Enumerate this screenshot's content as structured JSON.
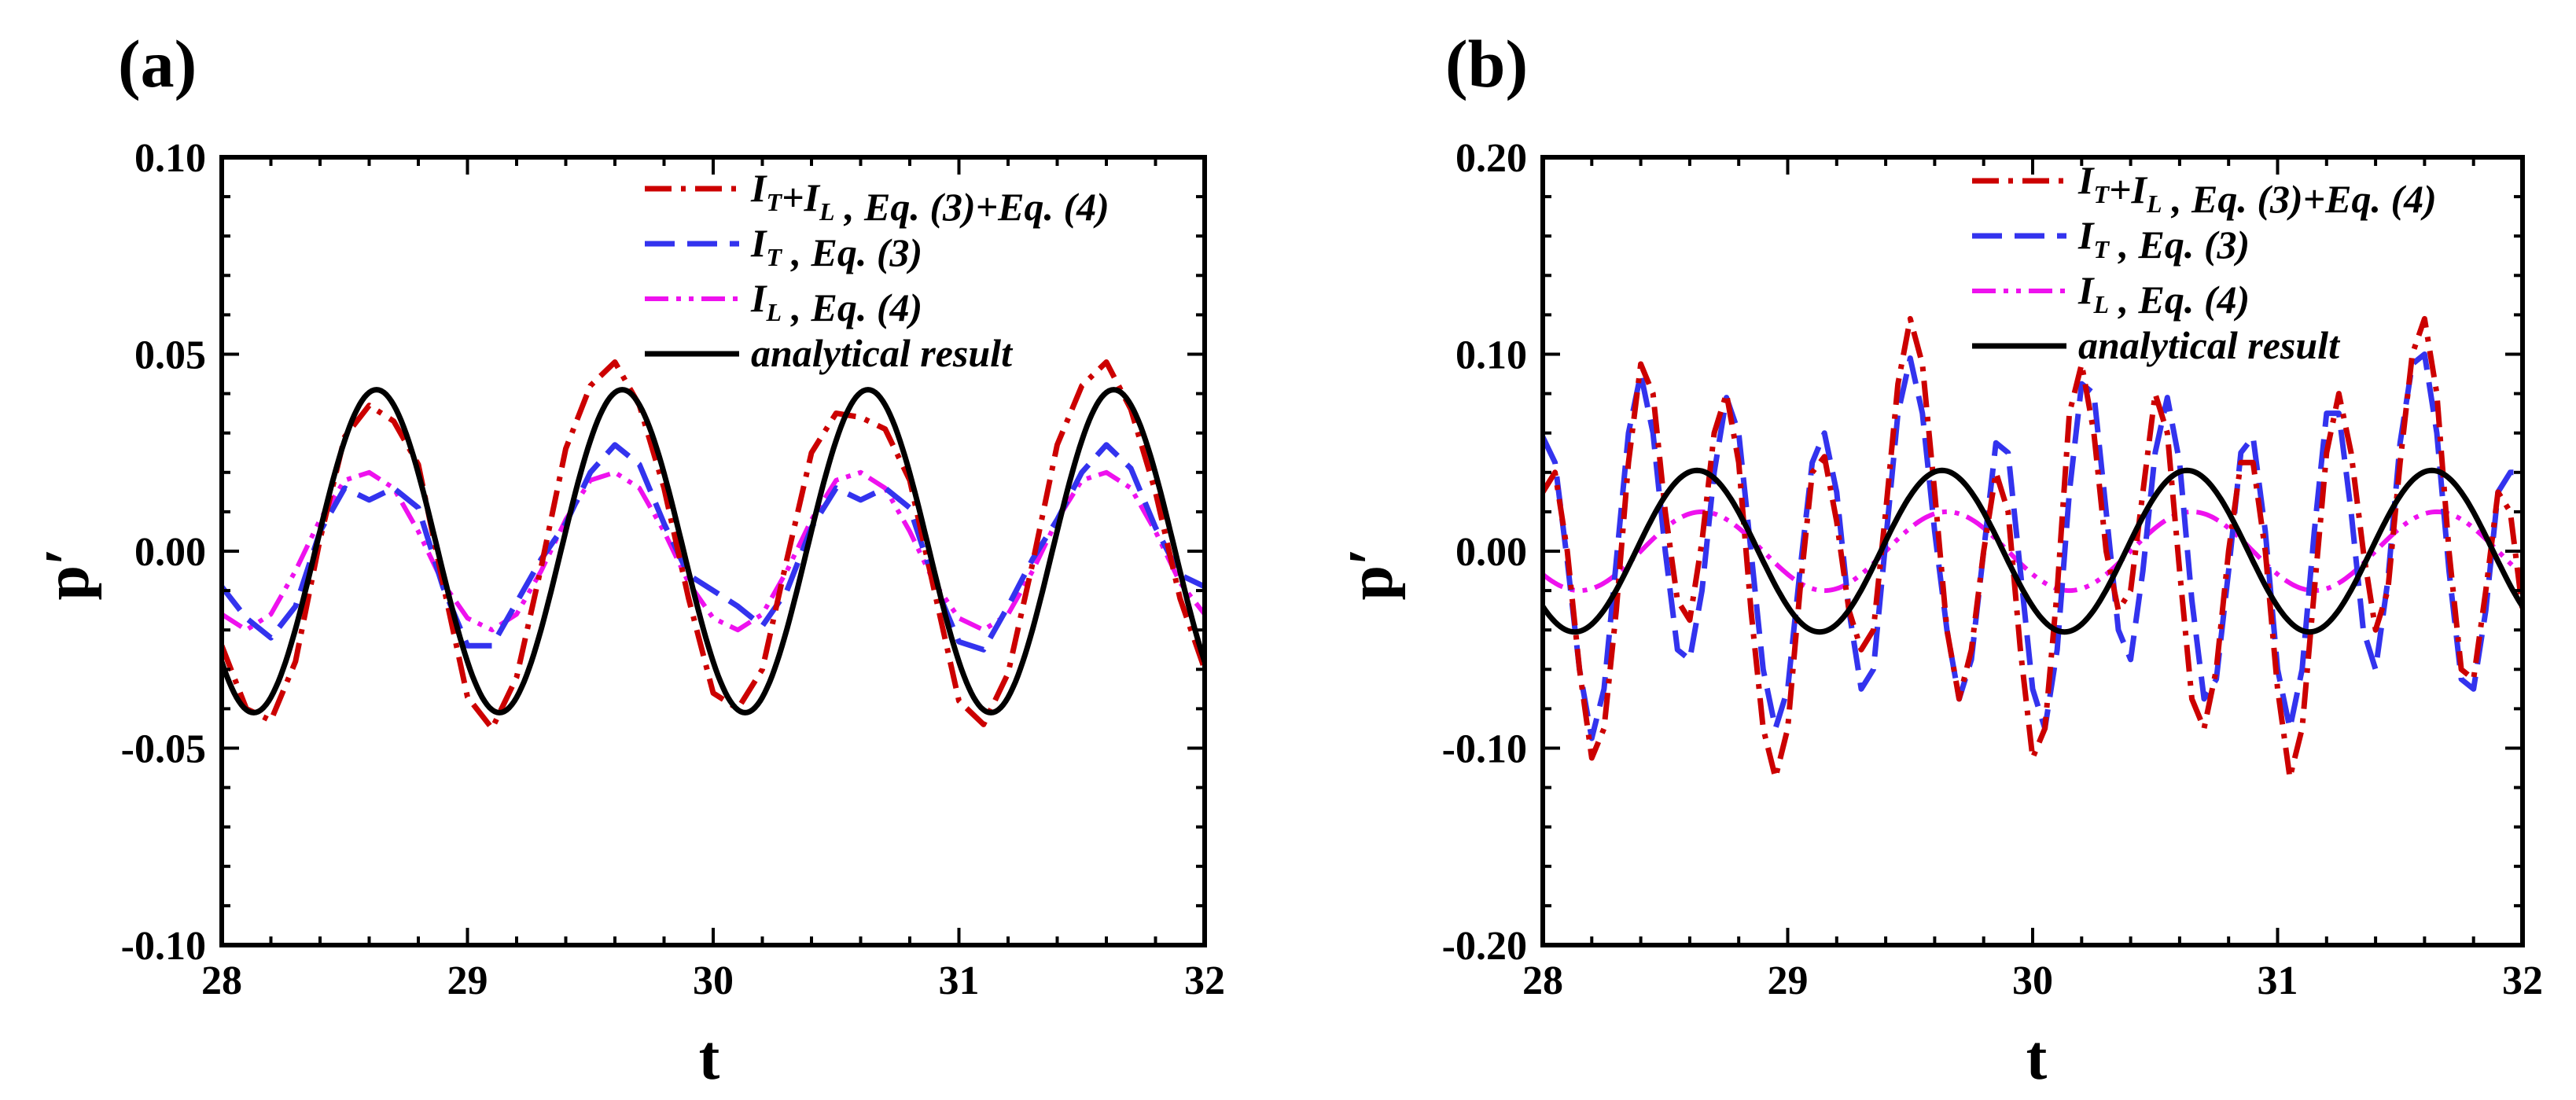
{
  "chart_data": [
    {
      "type": "line",
      "panel_label": "(a)",
      "xlabel": "t",
      "ylabel": "p′",
      "xlim": [
        28,
        32
      ],
      "ylim": [
        -0.1,
        0.1
      ],
      "xticks": [
        28,
        29,
        30,
        31,
        32
      ],
      "xtick_labels": [
        "28",
        "29",
        "30",
        "31",
        "32"
      ],
      "yticks": [
        -0.1,
        -0.05,
        0.0,
        0.05,
        0.1
      ],
      "ytick_labels": [
        "-0.10",
        "-0.05",
        "0.00",
        "0.05",
        "0.10"
      ],
      "legend": "top-right",
      "series": [
        {
          "key": "it_il",
          "name": "I_T+I_L , Eq. (3)+Eq. (4)",
          "color": "#cc0000",
          "dash": "dashdot",
          "x": [
            28.0,
            28.1,
            28.2,
            28.3,
            28.4,
            28.5,
            28.6,
            28.7,
            28.8,
            28.9,
            29.0,
            29.1,
            29.2,
            29.3,
            29.4,
            29.5,
            29.6,
            29.7,
            29.8,
            29.9,
            30.0,
            30.1,
            30.2,
            30.3,
            30.4,
            30.5,
            30.6,
            30.7,
            30.8,
            30.9,
            31.0,
            31.1,
            31.2,
            31.3,
            31.4,
            31.5,
            31.6,
            31.7,
            31.8,
            31.9,
            32.0
          ],
          "y": [
            -0.024,
            -0.04,
            -0.043,
            -0.028,
            0.003,
            0.029,
            0.037,
            0.033,
            0.022,
            -0.008,
            -0.037,
            -0.045,
            -0.032,
            -0.004,
            0.026,
            0.042,
            0.048,
            0.037,
            0.016,
            -0.012,
            -0.036,
            -0.04,
            -0.03,
            -0.002,
            0.025,
            0.035,
            0.034,
            0.031,
            0.018,
            -0.01,
            -0.038,
            -0.044,
            -0.031,
            -0.003,
            0.027,
            0.042,
            0.048,
            0.036,
            0.015,
            -0.012,
            -0.03
          ]
        },
        {
          "key": "it",
          "name": "I_T , Eq. (3)",
          "color": "#3333ee",
          "dash": "dash",
          "x": [
            28.0,
            28.1,
            28.2,
            28.3,
            28.4,
            28.5,
            28.6,
            28.7,
            28.8,
            28.9,
            29.0,
            29.1,
            29.2,
            29.3,
            29.4,
            29.5,
            29.6,
            29.7,
            29.8,
            29.9,
            30.0,
            30.1,
            30.2,
            30.3,
            30.4,
            30.5,
            30.6,
            30.7,
            30.8,
            30.9,
            31.0,
            31.1,
            31.2,
            31.3,
            31.4,
            31.5,
            31.6,
            31.7,
            31.8,
            31.9,
            32.0
          ],
          "y": [
            -0.009,
            -0.017,
            -0.022,
            -0.014,
            0.005,
            0.016,
            0.013,
            0.016,
            0.011,
            -0.009,
            -0.024,
            -0.024,
            -0.013,
            -0.002,
            0.007,
            0.02,
            0.027,
            0.022,
            0.007,
            -0.006,
            -0.01,
            -0.014,
            -0.019,
            -0.01,
            0.006,
            0.016,
            0.013,
            0.016,
            0.011,
            -0.008,
            -0.023,
            -0.025,
            -0.014,
            -0.002,
            0.008,
            0.02,
            0.027,
            0.021,
            0.006,
            -0.006,
            -0.009
          ]
        },
        {
          "key": "il",
          "name": "I_L , Eq. (4)",
          "color": "#ee11ee",
          "dash": "dashdotdot",
          "x": [
            28.0,
            28.1,
            28.2,
            28.3,
            28.4,
            28.5,
            28.6,
            28.7,
            28.8,
            28.9,
            29.0,
            29.1,
            29.2,
            29.3,
            29.4,
            29.5,
            29.6,
            29.7,
            29.8,
            29.9,
            30.0,
            30.1,
            30.2,
            30.3,
            30.4,
            30.5,
            30.6,
            30.7,
            30.8,
            30.9,
            31.0,
            31.1,
            31.2,
            31.3,
            31.4,
            31.5,
            31.6,
            31.7,
            31.8,
            31.9,
            32.0
          ],
          "y": [
            -0.016,
            -0.02,
            -0.016,
            -0.005,
            0.008,
            0.018,
            0.02,
            0.016,
            0.005,
            -0.008,
            -0.017,
            -0.02,
            -0.016,
            -0.005,
            0.008,
            0.018,
            0.02,
            0.016,
            0.005,
            -0.008,
            -0.017,
            -0.02,
            -0.016,
            -0.005,
            0.008,
            0.018,
            0.02,
            0.016,
            0.005,
            -0.008,
            -0.017,
            -0.02,
            -0.016,
            -0.005,
            0.008,
            0.018,
            0.02,
            0.016,
            0.005,
            -0.008,
            -0.016
          ]
        },
        {
          "key": "an",
          "name": "analytical result",
          "color": "#000000",
          "dash": "solid",
          "func": {
            "amp": 0.041,
            "period": 1.0,
            "peak_t": 28.63
          }
        }
      ]
    },
    {
      "type": "line",
      "panel_label": "(b)",
      "xlabel": "t",
      "ylabel": "p′",
      "xlim": [
        28,
        32
      ],
      "ylim": [
        -0.2,
        0.2
      ],
      "xticks": [
        28,
        29,
        30,
        31,
        32
      ],
      "xtick_labels": [
        "28",
        "29",
        "30",
        "31",
        "32"
      ],
      "yticks": [
        -0.2,
        -0.1,
        0.0,
        0.1,
        0.2
      ],
      "ytick_labels": [
        "-0.20",
        "-0.10",
        "0.00",
        "0.10",
        "0.20"
      ],
      "legend": "top-right",
      "series": [
        {
          "key": "it_il",
          "name": "I_T+I_L , Eq. (3)+Eq. (4)",
          "color": "#cc0000",
          "dash": "dashdot",
          "x": [
            28.0,
            28.05,
            28.1,
            28.15,
            28.2,
            28.25,
            28.3,
            28.35,
            28.4,
            28.45,
            28.5,
            28.55,
            28.6,
            28.65,
            28.7,
            28.75,
            28.8,
            28.85,
            28.9,
            28.95,
            29.0,
            29.05,
            29.1,
            29.15,
            29.2,
            29.25,
            29.3,
            29.35,
            29.4,
            29.45,
            29.5,
            29.55,
            29.6,
            29.65,
            29.7,
            29.75,
            29.8,
            29.85,
            29.9,
            29.95,
            30.0,
            30.05,
            30.1,
            30.15,
            30.2,
            30.25,
            30.3,
            30.35,
            30.4,
            30.45,
            30.5,
            30.55,
            30.6,
            30.65,
            30.7,
            30.75,
            30.8,
            30.85,
            30.9,
            30.95,
            31.0,
            31.05,
            31.1,
            31.15,
            31.2,
            31.25,
            31.3,
            31.35,
            31.4,
            31.45,
            31.5,
            31.55,
            31.6,
            31.65,
            31.7,
            31.75,
            31.8,
            31.85,
            31.9,
            31.95,
            32.0
          ],
          "y": [
            0.03,
            0.04,
            0.0,
            -0.06,
            -0.105,
            -0.09,
            -0.03,
            0.045,
            0.095,
            0.08,
            0.02,
            -0.025,
            -0.035,
            0.005,
            0.06,
            0.08,
            0.045,
            -0.03,
            -0.09,
            -0.115,
            -0.09,
            -0.02,
            0.04,
            0.048,
            0.015,
            -0.03,
            -0.05,
            -0.04,
            0.02,
            0.085,
            0.118,
            0.095,
            0.03,
            -0.04,
            -0.075,
            -0.05,
            0.0,
            0.04,
            0.02,
            -0.05,
            -0.105,
            -0.09,
            -0.02,
            0.07,
            0.095,
            0.06,
            0.0,
            -0.03,
            -0.02,
            0.03,
            0.08,
            0.06,
            -0.01,
            -0.075,
            -0.09,
            -0.06,
            0.0,
            0.045,
            0.045,
            0.0,
            -0.07,
            -0.115,
            -0.09,
            -0.02,
            0.05,
            0.08,
            0.05,
            0.0,
            -0.04,
            -0.02,
            0.045,
            0.1,
            0.118,
            0.08,
            0.0,
            -0.06,
            -0.065,
            -0.02,
            0.03,
            0.02,
            -0.03
          ]
        },
        {
          "key": "it",
          "name": "I_T , Eq. (3)",
          "color": "#3333ee",
          "dash": "dash",
          "x": [
            28.0,
            28.05,
            28.1,
            28.15,
            28.2,
            28.25,
            28.3,
            28.35,
            28.4,
            28.45,
            28.5,
            28.55,
            28.6,
            28.65,
            28.7,
            28.75,
            28.8,
            28.85,
            28.9,
            28.95,
            29.0,
            29.05,
            29.1,
            29.15,
            29.2,
            29.25,
            29.3,
            29.35,
            29.4,
            29.45,
            29.5,
            29.55,
            29.6,
            29.65,
            29.7,
            29.75,
            29.8,
            29.85,
            29.9,
            29.95,
            30.0,
            30.05,
            30.1,
            30.15,
            30.2,
            30.25,
            30.3,
            30.35,
            30.4,
            30.45,
            30.5,
            30.55,
            30.6,
            30.65,
            30.7,
            30.75,
            30.8,
            30.85,
            30.9,
            30.95,
            31.0,
            31.05,
            31.1,
            31.15,
            31.2,
            31.25,
            31.3,
            31.35,
            31.4,
            31.45,
            31.5,
            31.55,
            31.6,
            31.65,
            31.7,
            31.75,
            31.8,
            31.85,
            31.9,
            31.95,
            32.0
          ],
          "y": [
            0.058,
            0.045,
            -0.005,
            -0.06,
            -0.095,
            -0.07,
            -0.005,
            0.06,
            0.09,
            0.06,
            0.0,
            -0.05,
            -0.055,
            -0.02,
            0.04,
            0.078,
            0.06,
            0.0,
            -0.06,
            -0.09,
            -0.07,
            -0.01,
            0.045,
            0.06,
            0.03,
            -0.03,
            -0.07,
            -0.06,
            0.005,
            0.07,
            0.098,
            0.07,
            0.01,
            -0.04,
            -0.075,
            -0.055,
            0.0,
            0.055,
            0.05,
            -0.01,
            -0.07,
            -0.09,
            -0.05,
            0.03,
            0.085,
            0.08,
            0.02,
            -0.04,
            -0.055,
            -0.01,
            0.05,
            0.078,
            0.045,
            -0.025,
            -0.075,
            -0.065,
            -0.01,
            0.05,
            0.058,
            0.01,
            -0.06,
            -0.09,
            -0.06,
            0.01,
            0.07,
            0.07,
            0.02,
            -0.04,
            -0.06,
            -0.015,
            0.055,
            0.095,
            0.1,
            0.06,
            -0.01,
            -0.065,
            -0.07,
            -0.03,
            0.03,
            0.04,
            0.04
          ]
        },
        {
          "key": "il",
          "name": "I_L , Eq. (4)",
          "color": "#ee11ee",
          "dash": "dashdotdot",
          "func": {
            "amp": 0.02,
            "period": 1.0,
            "peak_t": 28.65
          }
        },
        {
          "key": "an",
          "name": "analytical result",
          "color": "#000000",
          "dash": "solid",
          "func": {
            "amp": 0.041,
            "period": 1.0,
            "peak_t": 28.63
          }
        }
      ]
    }
  ],
  "legend_entries": [
    [
      {
        "main": "I",
        "sub": "T",
        "rest": "+I",
        "sub2": "L",
        "tail": " , Eq. (3)+Eq. (4)"
      },
      {
        "main": "I",
        "sub": "T",
        "tail": " , Eq. (3)"
      },
      {
        "main": "I",
        "sub": "L",
        "tail": " , Eq. (4)"
      },
      {
        "main": "analytical result"
      }
    ],
    [
      {
        "main": "I",
        "sub": "T",
        "rest": "+I",
        "sub2": "L",
        "tail": " , Eq. (3)+Eq. (4)"
      },
      {
        "main": "I",
        "sub": "T",
        "tail": " , Eq. (3)"
      },
      {
        "main": "I",
        "sub": "L",
        "tail": " , Eq. (4)"
      },
      {
        "main": "analytical result"
      }
    ]
  ]
}
